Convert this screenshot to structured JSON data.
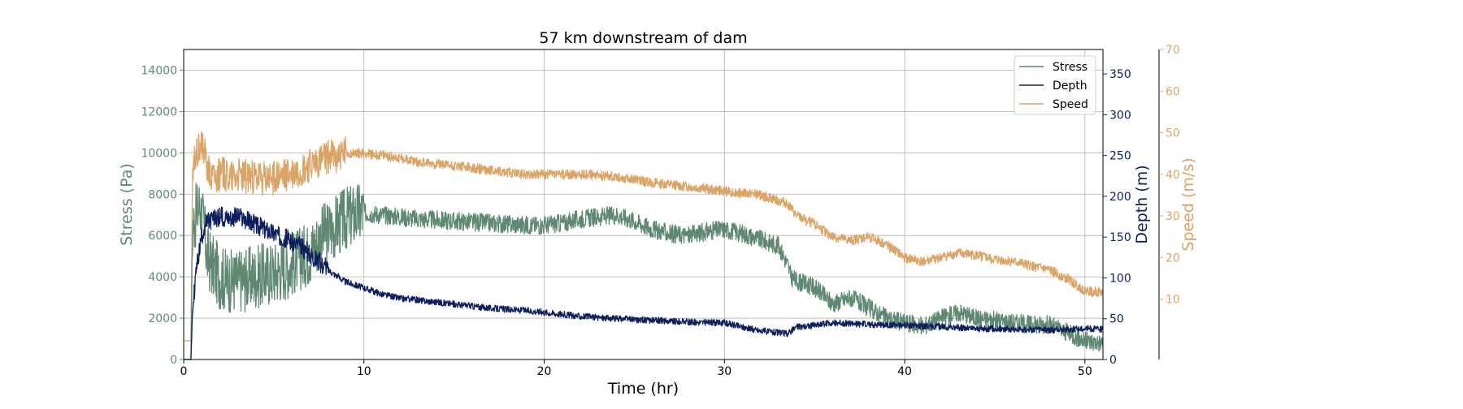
{
  "chart_data": {
    "type": "line",
    "title": "57 km downstream of dam",
    "xlabel": "Time (hr)",
    "xlim": [
      0,
      51
    ],
    "x_ticks": [
      0,
      10,
      20,
      30,
      40,
      50
    ],
    "grid": true,
    "legend_placement": "top-right",
    "axes": {
      "stress": {
        "label": "Stress (Pa)",
        "color": "#5f8872",
        "ylim": [
          0,
          15000
        ],
        "ticks": [
          0,
          2000,
          4000,
          6000,
          8000,
          10000,
          12000,
          14000
        ],
        "position": "left"
      },
      "depth": {
        "label": "Depth (m)",
        "color": "#0d1f5c",
        "ylim": [
          0,
          380
        ],
        "ticks": [
          0,
          50,
          100,
          150,
          200,
          250,
          300,
          350
        ],
        "position": "right"
      },
      "speed": {
        "label": "Speed (m/s)",
        "color": "#dba467",
        "ylim": [
          -4.5,
          70
        ],
        "ticks": [
          10,
          20,
          30,
          40,
          50,
          60,
          70
        ],
        "position": "right-offset"
      }
    },
    "series": [
      {
        "name": "Stress",
        "axis": "stress",
        "color": "#5f8872",
        "x": [
          0,
          0.4,
          0.5,
          0.7,
          0.9,
          1.1,
          1.3,
          1.6,
          2.0,
          2.5,
          3.0,
          3.5,
          4.0,
          5.0,
          6.0,
          7.0,
          7.5,
          8.0,
          8.5,
          9.0,
          9.5,
          10.0,
          11,
          12,
          13,
          14,
          15,
          16,
          17,
          18,
          19,
          20,
          21,
          22,
          23,
          24,
          25,
          26,
          27,
          28,
          29,
          30,
          31,
          32,
          33,
          33.5,
          33.7,
          34,
          35,
          36,
          37,
          38,
          39,
          40,
          41,
          42,
          43,
          44,
          45,
          46,
          47,
          48,
          49,
          50,
          51
        ],
        "y": [
          0,
          0,
          6500,
          7000,
          7500,
          6500,
          5000,
          4500,
          4000,
          3800,
          3800,
          3900,
          4000,
          4200,
          4600,
          5200,
          5800,
          6200,
          6500,
          6800,
          7000,
          7100,
          7000,
          6900,
          6800,
          6750,
          6700,
          6650,
          6600,
          6550,
          6500,
          6500,
          6600,
          6800,
          6900,
          7000,
          6700,
          6300,
          6100,
          6000,
          6200,
          6300,
          6100,
          5800,
          5500,
          4600,
          4000,
          3800,
          3500,
          2700,
          3000,
          2500,
          2000,
          1800,
          1600,
          2000,
          2300,
          2000,
          1900,
          1800,
          1700,
          1700,
          1300,
          900,
          800
        ],
        "noise": 450
      },
      {
        "name": "Depth",
        "axis": "depth",
        "color": "#0d1f5c",
        "x": [
          0,
          0.4,
          0.5,
          0.7,
          1.0,
          1.2,
          1.5,
          2.0,
          3.0,
          4.0,
          5.0,
          6.0,
          7.0,
          8.0,
          9.0,
          10.0,
          11,
          12,
          13,
          15,
          17,
          19,
          20,
          22,
          24,
          26,
          28,
          30,
          32,
          33.5,
          34,
          35,
          36,
          37,
          38,
          40,
          42,
          44,
          46,
          48,
          50,
          51
        ],
        "y": [
          0,
          0,
          60,
          110,
          150,
          165,
          170,
          175,
          175,
          165,
          155,
          145,
          130,
          110,
          95,
          88,
          80,
          75,
          73,
          68,
          63,
          60,
          58,
          53,
          50,
          48,
          46,
          45,
          35,
          32,
          40,
          42,
          45,
          44,
          43,
          42,
          40,
          38,
          37,
          36,
          38,
          37
        ],
        "noise": 4
      },
      {
        "name": "Speed",
        "axis": "speed",
        "color": "#dba467",
        "x": [
          0,
          0.4,
          0.5,
          0.7,
          1.0,
          1.2,
          1.5,
          2.0,
          3.0,
          4.0,
          5.0,
          6.0,
          7.0,
          8.0,
          9.0,
          10.0,
          11,
          12,
          13,
          15,
          17,
          19,
          20,
          22,
          24,
          26,
          28,
          30,
          32,
          33.5,
          34,
          35,
          36,
          37,
          38,
          39,
          40,
          41,
          42,
          43,
          44,
          45,
          46,
          47,
          48,
          49,
          50,
          51
        ],
        "y": [
          0,
          0,
          40,
          45,
          48,
          44,
          40,
          40,
          40,
          39,
          39,
          40,
          42,
          44,
          45,
          45,
          44.5,
          44,
          43,
          42,
          41,
          40,
          40,
          40,
          39.5,
          38,
          37,
          36,
          35,
          33,
          30,
          28,
          25,
          24,
          25,
          23,
          20,
          19,
          20,
          21,
          20.5,
          19.5,
          19,
          18,
          17,
          15,
          12,
          11.5
        ],
        "noise": 1.2
      }
    ]
  }
}
